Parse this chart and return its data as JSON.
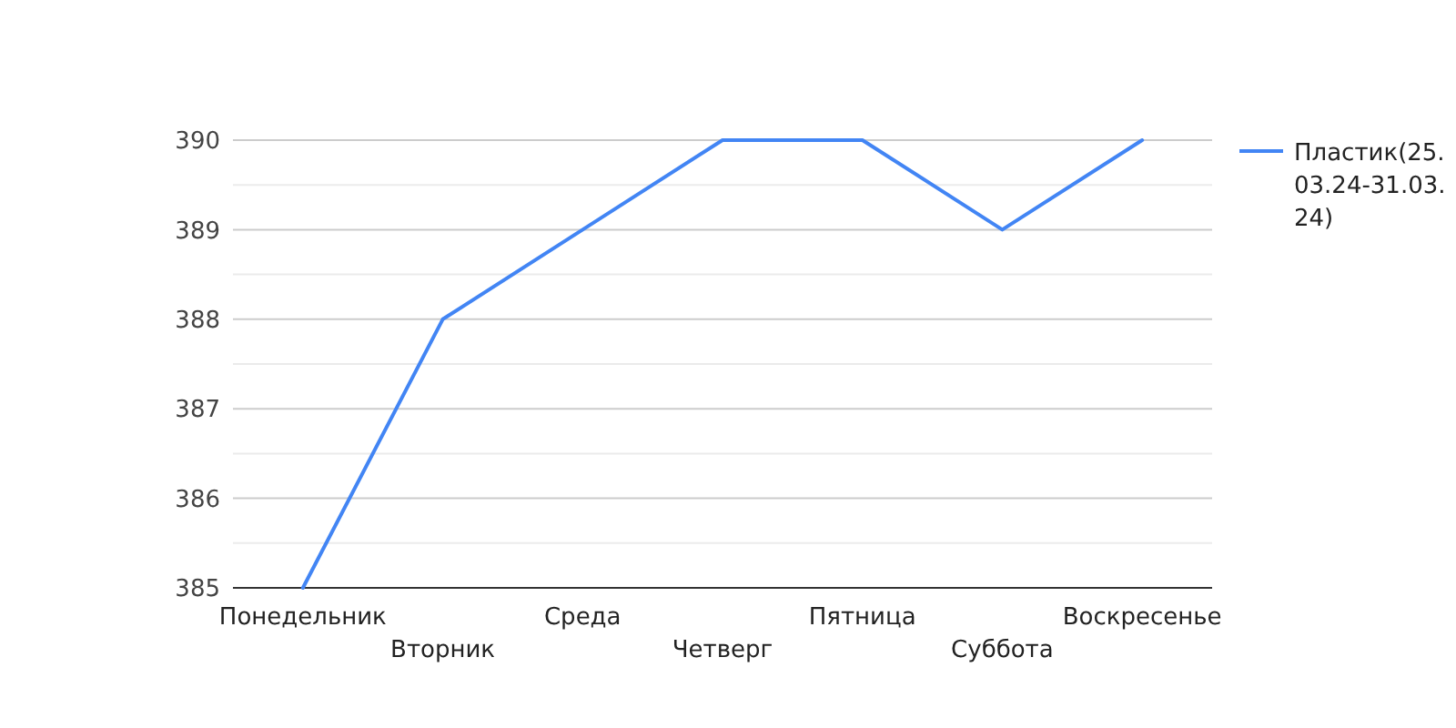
{
  "chart_data": {
    "type": "line",
    "categories": [
      "Понедельник",
      "Вторник",
      "Среда",
      "Четверг",
      "Пятница",
      "Суббота",
      "Воскресенье"
    ],
    "series": [
      {
        "name": "Пластик(25.03.24-31.03.24)",
        "color": "#4285f4",
        "values": [
          385,
          388,
          389,
          390,
          390,
          389,
          390
        ]
      }
    ],
    "ylim": [
      385,
      390
    ],
    "yticks": [
      385,
      {
        "value": 385.5,
        "label": null
      },
      386,
      {
        "value": 386.5,
        "label": null
      },
      387,
      {
        "value": 387.5,
        "label": null
      },
      388,
      {
        "value": 388.5,
        "label": null
      },
      389,
      {
        "value": 389.5,
        "label": null
      },
      390
    ],
    "grid": "y",
    "legend": "right",
    "marker": "none",
    "line_style": "solid"
  }
}
